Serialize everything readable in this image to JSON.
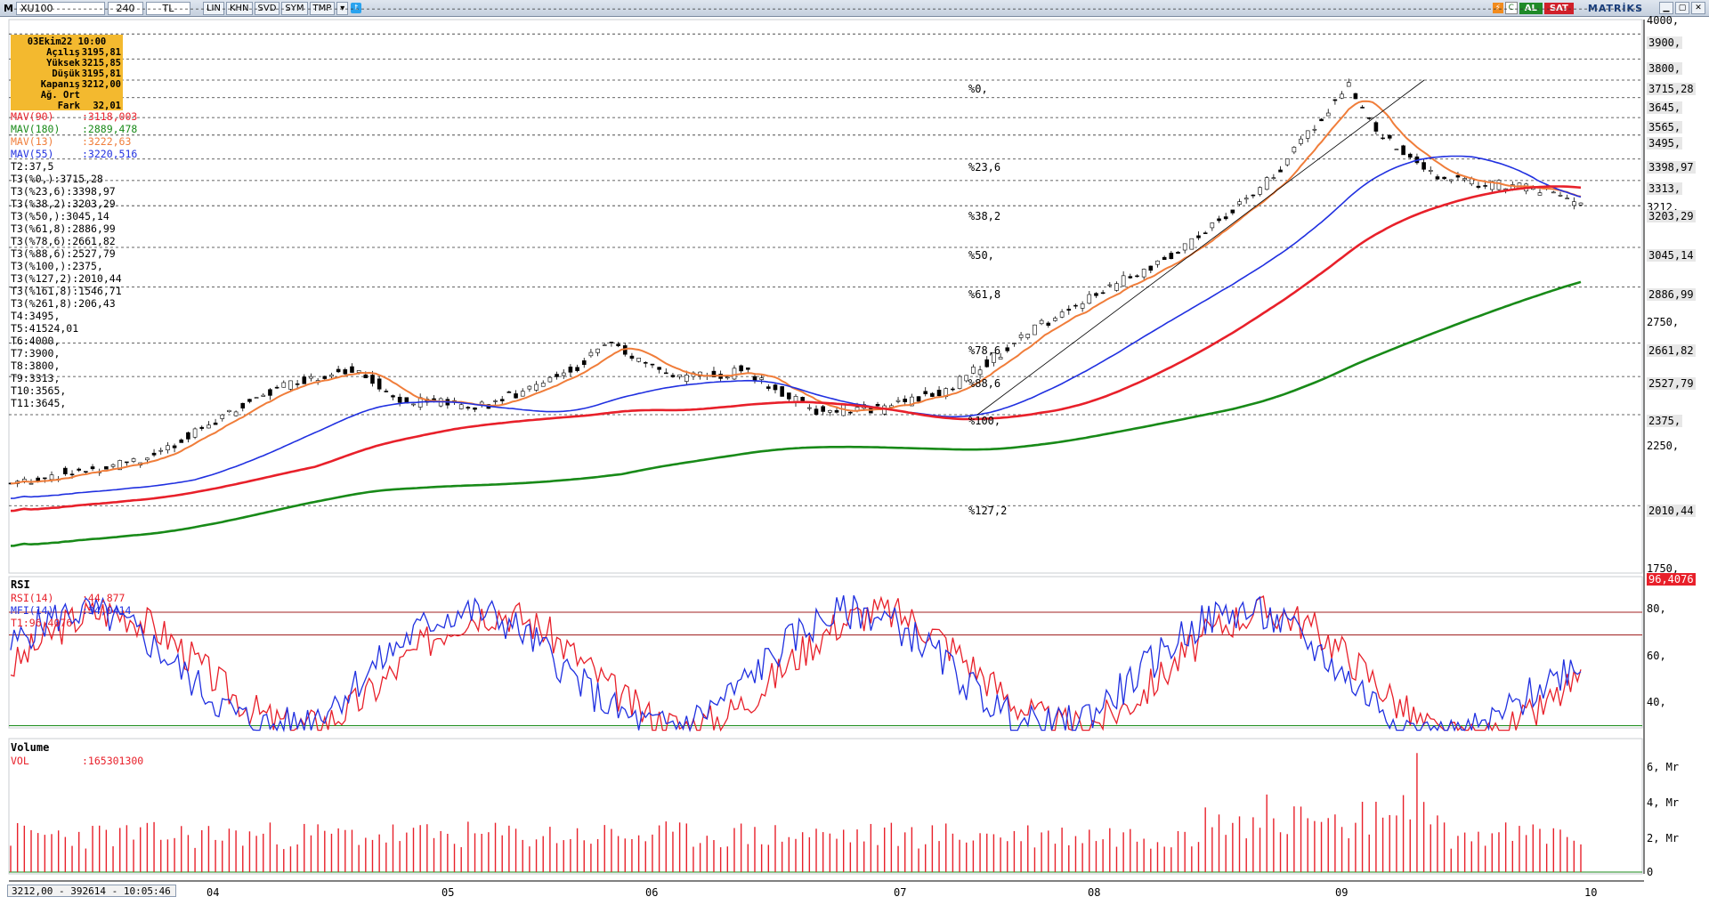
{
  "toolbar": {
    "menu_label": "M",
    "symbol": "XU100",
    "period": "240",
    "currency": "TL",
    "buttons": [
      "LIN",
      "KHN",
      "SVD",
      "SYM",
      "TMP"
    ],
    "buy_label": "AL",
    "sell_label": "SAT",
    "brand": "MATRİKS",
    "icons": [
      "dropdown-icon",
      "twitter-icon",
      "info-icon",
      "refresh-icon",
      "minimize-icon",
      "maximize-icon",
      "close-icon"
    ]
  },
  "infobox": {
    "date": "03Ekim22 10:00",
    "rows": [
      {
        "label": "Açılış",
        "value": "3195,81"
      },
      {
        "label": "Yüksek",
        "value": "3215,85"
      },
      {
        "label": "Düşük",
        "value": "3195,81"
      },
      {
        "label": "Kapanış",
        "value": "3212,00"
      },
      {
        "label": "Ağ. Ort",
        "value": ""
      },
      {
        "label": "Fark",
        "value": "32,01"
      }
    ]
  },
  "mav": [
    {
      "label": "MAV(90)",
      "value": ":3118,003",
      "color": "#e8202a"
    },
    {
      "label": "MAV(180)",
      "value": ":2889,478",
      "color": "#188a18"
    },
    {
      "label": "MAV(13)",
      "value": ":3222,63",
      "color": "#f07d3a"
    },
    {
      "label": "MAV(55)",
      "value": ":3220,516",
      "color": "#2030e0"
    }
  ],
  "t_values": [
    "T2:37,5",
    "T3(%0,):3715,28",
    "T3(%23,6):3398,97",
    "T3(%38,2):3203,29",
    "T3(%50,):3045,14",
    "T3(%61,8):2886,99",
    "T3(%78,6):2661,82",
    "T3(%88,6):2527,79",
    "T3(%100,):2375,",
    "T3(%127,2):2010,44",
    "T3(%161,8):1546,71",
    "T3(%261,8):206,43",
    "T4:3495,",
    "T5:41524,01",
    "T6:4000,",
    "T7:3900,",
    "T8:3800,",
    "T9:3313,",
    "T10:3565,",
    "T11:3645,"
  ],
  "fib_labels": [
    "%0,",
    "%23,6",
    "%38,2",
    "%50,",
    "%61,8",
    "%78,6",
    "%88,6",
    "%100,",
    "%127,2"
  ],
  "price_axis": {
    "labels": [
      "4000,",
      "3900,",
      "3800,",
      "3715,28",
      "3645,",
      "3565,",
      "3495,",
      "3398,97",
      "3313,",
      "3212,",
      "3203,29",
      "3045,14",
      "2886,99",
      "2750,",
      "2661,82",
      "2527,79",
      "2375,",
      "2250,",
      "2010,44",
      "1750,"
    ]
  },
  "rsi_panel": {
    "title": "RSI",
    "lines": [
      {
        "label": "RSI(14)",
        "value": ":44,877",
        "color": "#e8202a"
      },
      {
        "label": "MFI(14)",
        "value": ":34,0414",
        "color": "#2030e0"
      },
      {
        "label": "T1:96,4076",
        "value": "",
        "color": "#e8202a"
      }
    ],
    "axis": [
      "96,4076",
      "80,",
      "60,",
      "40,"
    ]
  },
  "volume_panel": {
    "title": "Volume",
    "line_label": "VOL",
    "line_value": ":165301300",
    "axis": [
      "6, Mr",
      "4, Mr",
      "2, Mr",
      "0"
    ]
  },
  "x_axis": [
    "04",
    "05",
    "06",
    "07",
    "08",
    "09",
    "10"
  ],
  "status": "3212,00 - 392614 - 10:05:46",
  "colors": {
    "candle_up": "#ffffff",
    "candle_down": "#000000",
    "mav90": "#e8202a",
    "mav180": "#188a18",
    "mav13": "#f07d3a",
    "mav55": "#2030e0"
  }
}
